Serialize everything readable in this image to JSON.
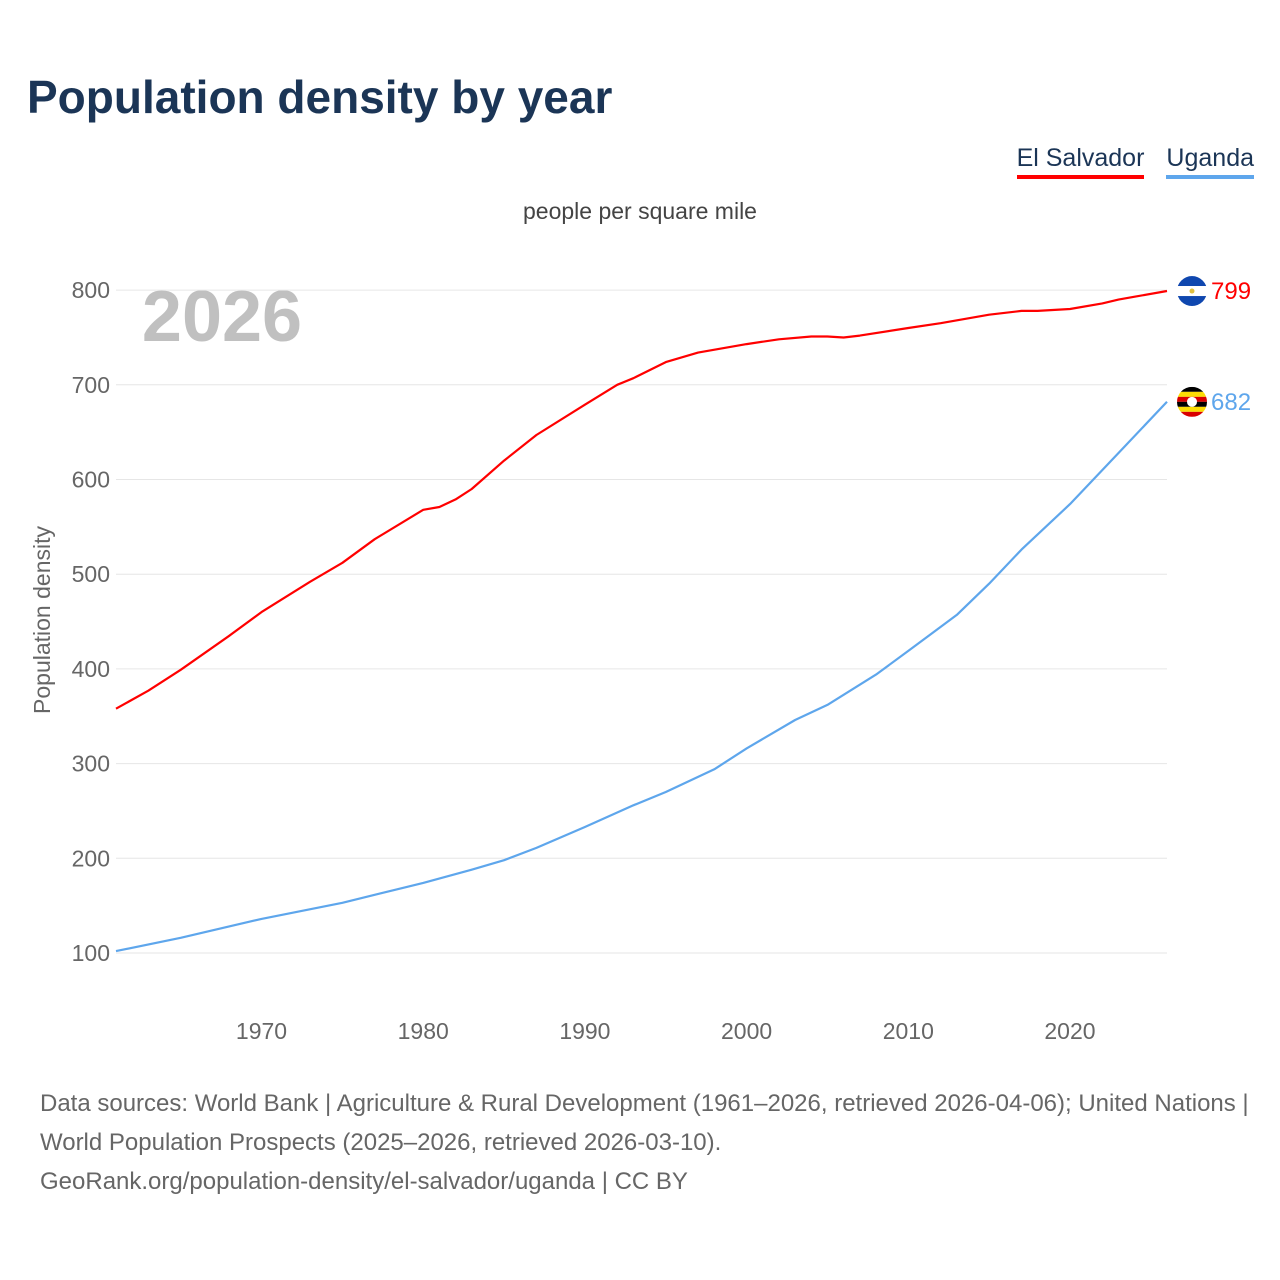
{
  "title": "Population density by year",
  "legend": [
    {
      "label": "El Salvador",
      "color": "#ff0000"
    },
    {
      "label": "Uganda",
      "color": "#5ea6ec"
    }
  ],
  "footer": {
    "line1": "Data sources: World Bank | Agriculture & Rural Development (1961–2026, retrieved 2026-04-06); United Nations | World Population Prospects (2025–2026, retrieved 2026-03-10).",
    "line2": "GeoRank.org/population-density/el-salvador/uganda | CC BY"
  },
  "chart_data": {
    "type": "line",
    "subtitle": "people per square mile",
    "ylabel": "Population density",
    "year_watermark": "2026",
    "xlim": [
      1961,
      2026
    ],
    "ylim": [
      50,
      830
    ],
    "xticks": [
      1970,
      1980,
      1990,
      2000,
      2010,
      2020
    ],
    "yticks": [
      100,
      200,
      300,
      400,
      500,
      600,
      700,
      800
    ],
    "grid": true,
    "series": [
      {
        "name": "El Salvador",
        "color": "#ff0000",
        "end_label": "799",
        "points": [
          [
            1961,
            358
          ],
          [
            1963,
            377
          ],
          [
            1965,
            399
          ],
          [
            1968,
            435
          ],
          [
            1970,
            460
          ],
          [
            1973,
            492
          ],
          [
            1975,
            512
          ],
          [
            1977,
            537
          ],
          [
            1980,
            568
          ],
          [
            1981,
            571
          ],
          [
            1982,
            579
          ],
          [
            1983,
            590
          ],
          [
            1985,
            620
          ],
          [
            1987,
            647
          ],
          [
            1990,
            679
          ],
          [
            1992,
            700
          ],
          [
            1993,
            707
          ],
          [
            1995,
            724
          ],
          [
            1997,
            734
          ],
          [
            2000,
            743
          ],
          [
            2002,
            748
          ],
          [
            2004,
            751
          ],
          [
            2005,
            751
          ],
          [
            2006,
            750
          ],
          [
            2007,
            752
          ],
          [
            2010,
            760
          ],
          [
            2012,
            765
          ],
          [
            2015,
            774
          ],
          [
            2017,
            778
          ],
          [
            2018,
            778
          ],
          [
            2020,
            780
          ],
          [
            2022,
            786
          ],
          [
            2023,
            790
          ],
          [
            2024,
            793
          ],
          [
            2026,
            799
          ]
        ]
      },
      {
        "name": "Uganda",
        "color": "#5ea6ec",
        "end_label": "682",
        "points": [
          [
            1961,
            102
          ],
          [
            1965,
            116
          ],
          [
            1970,
            136
          ],
          [
            1975,
            153
          ],
          [
            1980,
            174
          ],
          [
            1983,
            188
          ],
          [
            1985,
            198
          ],
          [
            1987,
            211
          ],
          [
            1990,
            233
          ],
          [
            1993,
            256
          ],
          [
            1995,
            270
          ],
          [
            1998,
            294
          ],
          [
            2000,
            316
          ],
          [
            2003,
            346
          ],
          [
            2005,
            362
          ],
          [
            2008,
            394
          ],
          [
            2010,
            419
          ],
          [
            2013,
            457
          ],
          [
            2015,
            490
          ],
          [
            2017,
            526
          ],
          [
            2020,
            574
          ],
          [
            2023,
            628
          ],
          [
            2026,
            682
          ]
        ]
      }
    ]
  }
}
